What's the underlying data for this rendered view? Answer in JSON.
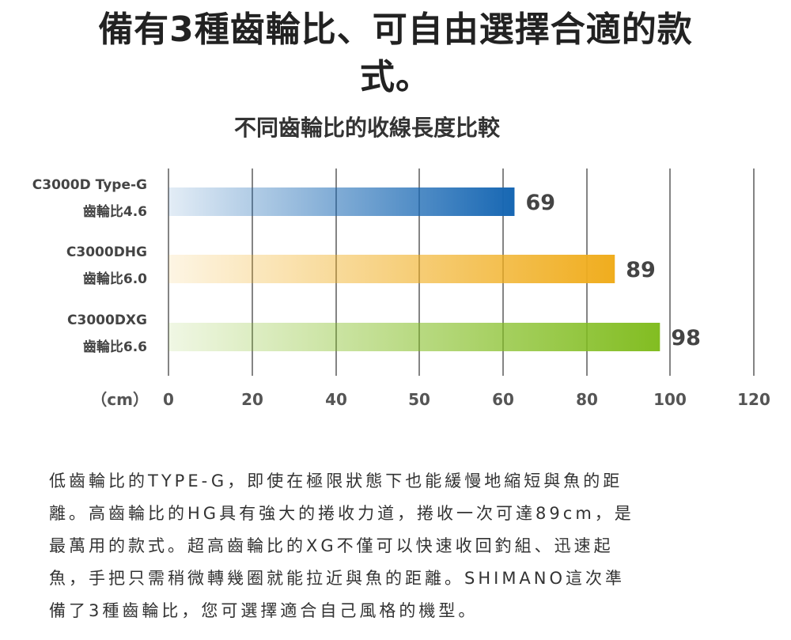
{
  "headline": {
    "line1": "備有3種齒輪比、可自由選擇合適的款",
    "line2": "式。"
  },
  "chart_data": {
    "type": "bar",
    "orientation": "horizontal",
    "title": "不同齒輪比的收線長度比較",
    "unit_label": "（cm）",
    "x_ticks": [
      "0",
      "20",
      "40",
      "50",
      "60",
      "80",
      "100",
      "120"
    ],
    "grid": true,
    "bars": [
      {
        "name": "C3000D Type-G",
        "ratio": "齒輪比4.6",
        "value": 69,
        "color": "#1767b3"
      },
      {
        "name": "C3000DHG",
        "ratio": "齒輪比6.0",
        "value": 89,
        "color": "#f0ad1e"
      },
      {
        "name": "C3000DXG",
        "ratio": "齒輪比6.6",
        "value": 98,
        "color": "#82bd21"
      }
    ]
  },
  "paragraph": {
    "lines": [
      "低齒輪比的TYPE-G，即使在極限狀態下也能緩慢地縮短與魚的距",
      "離。高齒輪比的HG具有強大的捲收力道，捲收一次可達89cm，是",
      "最萬用的款式。超高齒輪比的XG不僅可以快速收回釣組、迅速起",
      "魚，手把只需稍微轉幾圈就能拉近與魚的距離。SHIMANO這次準",
      "備了3種齒輪比，您可選擇適合自己風格的機型。"
    ]
  }
}
